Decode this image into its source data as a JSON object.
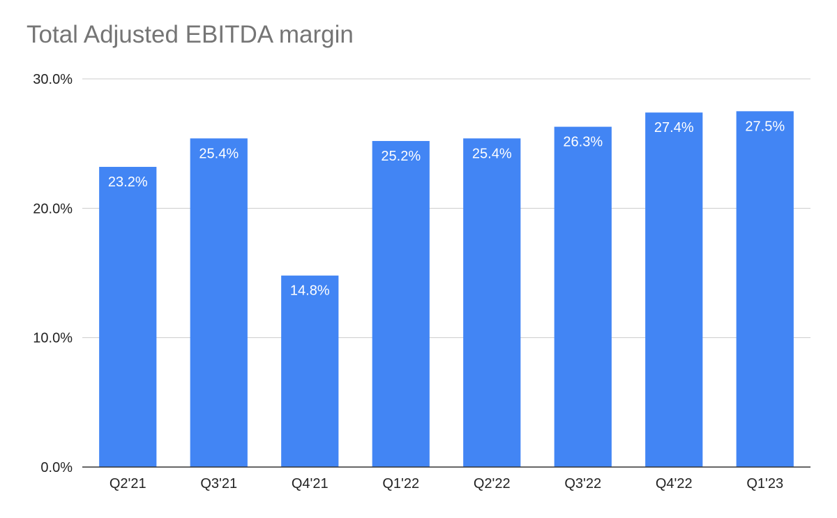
{
  "chart_data": {
    "type": "bar",
    "title": "Total Adjusted EBITDA margin",
    "categories": [
      "Q2'21",
      "Q3'21",
      "Q4'21",
      "Q1'22",
      "Q2'22",
      "Q3'22",
      "Q4'22",
      "Q1'23"
    ],
    "values": [
      23.2,
      25.4,
      14.8,
      25.2,
      25.4,
      26.3,
      27.4,
      27.5
    ],
    "data_labels": [
      "23.2%",
      "25.4%",
      "14.8%",
      "25.2%",
      "25.4%",
      "26.3%",
      "27.4%",
      "27.5%"
    ],
    "xlabel": "",
    "ylabel": "",
    "ylim": [
      0,
      30
    ],
    "yticks": [
      0,
      10,
      20,
      30
    ],
    "ytick_labels": [
      "0.0%",
      "10.0%",
      "20.0%",
      "30.0%"
    ],
    "grid": true,
    "legend": "none",
    "bar_color": "#4285f4",
    "label_color": "#ffffff"
  }
}
